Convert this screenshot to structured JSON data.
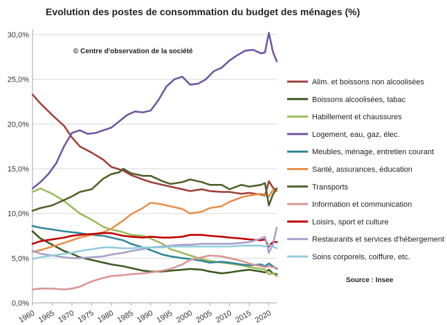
{
  "chart_data": {
    "type": "line",
    "title": "Evolution des postes de consommation du budget des ménages  (%)",
    "xlabel": "",
    "ylabel": "",
    "xlim": [
      1960,
      2022
    ],
    "ylim": [
      0,
      30
    ],
    "y_ticks": [
      0,
      5,
      10,
      15,
      20,
      25,
      30
    ],
    "y_tick_labels": [
      "0,0%",
      "5,0%",
      "10,0%",
      "15,0%",
      "20,0%",
      "25,0%",
      "30,0%"
    ],
    "x_ticks": [
      1960,
      1965,
      1970,
      1975,
      1980,
      1985,
      1990,
      1995,
      2000,
      2005,
      2010,
      2015,
      2020
    ],
    "x_tick_labels": [
      "1960",
      "1965",
      "1970",
      "1975",
      "1980",
      "1985",
      "1990",
      "1995",
      "2000",
      "2005",
      "2010",
      "2015",
      "2020"
    ],
    "grid": true,
    "legend_position": "right",
    "annotations": {
      "copyright": "© Centre d'observation de la société",
      "source": "Source : Insee"
    },
    "series": [
      {
        "name": "Alim. et boissons non alcoolisées",
        "color": "#a0413c",
        "x": [
          1960,
          1962,
          1965,
          1968,
          1970,
          1972,
          1975,
          1978,
          1980,
          1983,
          1985,
          1988,
          1990,
          1993,
          1995,
          1998,
          2000,
          2003,
          2005,
          2008,
          2010,
          2013,
          2015,
          2018,
          2019,
          2020,
          2021,
          2022
        ],
        "y": [
          23.3,
          22.3,
          21.0,
          19.8,
          18.5,
          17.5,
          16.8,
          16.0,
          15.2,
          14.8,
          14.3,
          13.8,
          13.5,
          13.2,
          13.0,
          12.7,
          12.5,
          12.7,
          12.5,
          12.4,
          12.4,
          12.2,
          12.3,
          12.1,
          12.0,
          13.6,
          12.9,
          12.5
        ]
      },
      {
        "name": "Boissons alcoolisées, tabac",
        "color": "#3c5a1e",
        "x": [
          1960,
          1962,
          1965,
          1968,
          1970,
          1972,
          1975,
          1978,
          1980,
          1983,
          1985,
          1988,
          1990,
          1993,
          1995,
          1998,
          2000,
          2003,
          2005,
          2008,
          2010,
          2013,
          2015,
          2018,
          2019,
          2020,
          2021,
          2022
        ],
        "y": [
          8.0,
          7.2,
          6.5,
          5.8,
          5.5,
          5.1,
          4.8,
          4.5,
          4.3,
          4.1,
          3.9,
          3.6,
          3.5,
          3.5,
          3.6,
          3.7,
          3.8,
          3.7,
          3.5,
          3.3,
          3.4,
          3.6,
          3.7,
          3.5,
          3.4,
          3.7,
          3.3,
          3.2
        ]
      },
      {
        "name": "Habillement et chaussures",
        "color": "#9bbb59",
        "x": [
          1960,
          1962,
          1965,
          1968,
          1970,
          1972,
          1975,
          1978,
          1980,
          1983,
          1985,
          1988,
          1990,
          1993,
          1995,
          1998,
          2000,
          2003,
          2005,
          2008,
          2010,
          2013,
          2015,
          2018,
          2019,
          2020,
          2021,
          2022
        ],
        "y": [
          12.4,
          12.8,
          12.2,
          11.4,
          10.7,
          10.0,
          9.3,
          8.5,
          8.2,
          7.9,
          7.6,
          7.5,
          7.2,
          6.6,
          6.0,
          5.6,
          5.3,
          4.9,
          4.7,
          4.5,
          4.4,
          4.2,
          4.0,
          3.8,
          3.7,
          3.2,
          3.3,
          3.0
        ]
      },
      {
        "name": "Logement, eau, gaz, élec.",
        "color": "#7057a3",
        "x": [
          1960,
          1962,
          1964,
          1966,
          1968,
          1970,
          1972,
          1974,
          1976,
          1978,
          1980,
          1982,
          1984,
          1986,
          1988,
          1990,
          1992,
          1994,
          1996,
          1998,
          2000,
          2002,
          2004,
          2006,
          2008,
          2010,
          2012,
          2014,
          2016,
          2018,
          2019,
          2020,
          2021,
          2022
        ],
        "y": [
          12.8,
          13.5,
          14.4,
          15.6,
          17.5,
          19.0,
          19.3,
          18.9,
          19.0,
          19.3,
          19.6,
          20.3,
          21.0,
          21.4,
          21.3,
          21.5,
          22.7,
          24.2,
          25.0,
          25.3,
          24.4,
          24.5,
          25.0,
          25.9,
          26.3,
          27.1,
          27.7,
          28.2,
          28.3,
          27.9,
          28.0,
          30.2,
          28.1,
          27.0
        ]
      },
      {
        "name": "Meubles, ménage, entretien courant",
        "color": "#31859c",
        "x": [
          1960,
          1962,
          1965,
          1968,
          1970,
          1972,
          1975,
          1978,
          1980,
          1983,
          1985,
          1988,
          1990,
          1993,
          1995,
          1998,
          2000,
          2003,
          2005,
          2008,
          2010,
          2013,
          2015,
          2018,
          2019,
          2020,
          2021,
          2022
        ],
        "y": [
          8.6,
          8.4,
          8.2,
          8.0,
          7.9,
          7.8,
          7.6,
          7.5,
          7.3,
          7.0,
          6.6,
          6.2,
          5.9,
          5.4,
          5.2,
          5.0,
          4.9,
          4.7,
          4.5,
          4.6,
          4.5,
          4.3,
          4.2,
          4.3,
          4.1,
          4.4,
          4.1,
          3.8
        ]
      },
      {
        "name": "Santé, assurances, éducation",
        "color": "#e6904a",
        "x": [
          1960,
          1962,
          1965,
          1968,
          1970,
          1972,
          1975,
          1978,
          1980,
          1983,
          1985,
          1988,
          1990,
          1993,
          1995,
          1998,
          2000,
          2003,
          2005,
          2008,
          2010,
          2013,
          2015,
          2018,
          2019,
          2020,
          2021,
          2022
        ],
        "y": [
          5.7,
          5.9,
          6.3,
          6.7,
          7.0,
          7.3,
          7.6,
          7.9,
          8.3,
          9.2,
          9.9,
          10.6,
          11.2,
          11.0,
          10.8,
          10.5,
          10.0,
          10.2,
          10.6,
          10.8,
          11.3,
          11.8,
          12.0,
          12.2,
          12.1,
          11.9,
          12.6,
          12.5
        ]
      },
      {
        "name": "Transports",
        "color": "#4f6228",
        "x": [
          1960,
          1962,
          1965,
          1968,
          1970,
          1972,
          1975,
          1978,
          1980,
          1982,
          1983,
          1985,
          1988,
          1990,
          1993,
          1995,
          1998,
          2000,
          2003,
          2005,
          2008,
          2010,
          2013,
          2015,
          2018,
          2019,
          2020,
          2021,
          2022
        ],
        "y": [
          10.3,
          10.6,
          10.9,
          11.5,
          11.9,
          12.4,
          12.7,
          13.9,
          14.4,
          14.6,
          15.0,
          14.5,
          14.2,
          14.2,
          13.6,
          13.3,
          13.5,
          13.8,
          13.5,
          13.2,
          13.2,
          12.7,
          13.2,
          13.0,
          13.2,
          13.4,
          10.9,
          12.1,
          12.8
        ]
      },
      {
        "name": "Information et communication",
        "color": "#da9694",
        "x": [
          1960,
          1962,
          1965,
          1968,
          1970,
          1972,
          1975,
          1978,
          1980,
          1983,
          1985,
          1988,
          1990,
          1993,
          1995,
          1998,
          2000,
          2003,
          2005,
          2008,
          2010,
          2013,
          2015,
          2018,
          2019,
          2020,
          2021,
          2022
        ],
        "y": [
          1.5,
          1.6,
          1.6,
          1.5,
          1.6,
          1.8,
          2.4,
          2.8,
          3.0,
          3.1,
          3.2,
          3.3,
          3.4,
          3.6,
          3.8,
          4.3,
          4.8,
          5.1,
          5.3,
          5.2,
          5.0,
          4.7,
          4.4,
          4.1,
          4.0,
          4.1,
          4.0,
          3.9
        ]
      },
      {
        "name": "Loisirs, sport et culture",
        "color": "#c00000",
        "x": [
          1960,
          1962,
          1965,
          1968,
          1970,
          1972,
          1975,
          1978,
          1980,
          1983,
          1985,
          1988,
          1990,
          1993,
          1995,
          1998,
          2000,
          2003,
          2005,
          2008,
          2010,
          2013,
          2015,
          2018,
          2019,
          2020,
          2021,
          2022
        ],
        "y": [
          6.6,
          6.9,
          7.1,
          7.3,
          7.5,
          7.6,
          7.7,
          7.8,
          7.8,
          7.5,
          7.4,
          7.3,
          7.4,
          7.3,
          7.3,
          7.4,
          7.6,
          7.6,
          7.5,
          7.4,
          7.3,
          7.2,
          7.1,
          7.0,
          7.1,
          6.3,
          6.8,
          6.8
        ]
      },
      {
        "name": "Restaurants et services d'hébergement",
        "color": "#a6a0c8",
        "x": [
          1960,
          1962,
          1965,
          1968,
          1970,
          1972,
          1975,
          1978,
          1980,
          1983,
          1985,
          1988,
          1990,
          1993,
          1995,
          1998,
          2000,
          2003,
          2005,
          2008,
          2010,
          2013,
          2015,
          2018,
          2019,
          2020,
          2021,
          2022
        ],
        "y": [
          5.8,
          5.5,
          5.3,
          5.1,
          5.0,
          5.0,
          5.1,
          5.2,
          5.4,
          5.6,
          5.8,
          6.0,
          6.2,
          6.3,
          6.4,
          6.5,
          6.5,
          6.6,
          6.6,
          6.6,
          6.6,
          6.7,
          6.8,
          7.2,
          7.4,
          5.6,
          6.5,
          8.4
        ]
      },
      {
        "name": "Soins corporels, coiffure, etc.",
        "color": "#92cddc",
        "x": [
          1960,
          1962,
          1965,
          1968,
          1970,
          1972,
          1975,
          1978,
          1980,
          1983,
          1985,
          1988,
          1990,
          1993,
          1995,
          1998,
          2000,
          2003,
          2005,
          2008,
          2010,
          2013,
          2015,
          2018,
          2019,
          2020,
          2021,
          2022
        ],
        "y": [
          4.9,
          5.1,
          5.3,
          5.5,
          5.6,
          5.8,
          6.0,
          6.2,
          6.2,
          6.1,
          6.1,
          6.2,
          6.2,
          6.2,
          6.3,
          6.3,
          6.3,
          6.3,
          6.3,
          6.3,
          6.3,
          6.4,
          6.4,
          6.4,
          6.3,
          6.5,
          6.3,
          6.1
        ]
      }
    ]
  }
}
